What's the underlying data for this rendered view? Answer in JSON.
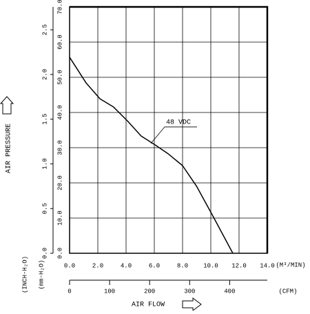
{
  "chart_data": {
    "type": "line",
    "x_label": "AIR FLOW",
    "y_label": "AIR PRESSURE",
    "x_unit": "(M³/MIN)",
    "y_unit": "(mm-H₂O)",
    "x2_unit": "(CFM)",
    "y2_unit": "(INCH-H₂O)",
    "xlim": [
      0,
      14
    ],
    "xticks": [
      {
        "value": 0,
        "label": "0.0"
      },
      {
        "value": 2,
        "label": "2.0"
      },
      {
        "value": 4,
        "label": "4.0"
      },
      {
        "value": 6,
        "label": "6.0"
      },
      {
        "value": 8,
        "label": "8.0"
      },
      {
        "value": 10,
        "label": "10.0"
      },
      {
        "value": 12,
        "label": "12.0"
      },
      {
        "value": 14,
        "label": "14.0"
      }
    ],
    "ylim": [
      0,
      70
    ],
    "yticks": [
      {
        "value": 0,
        "label": "0.0"
      },
      {
        "value": 10,
        "label": "10.0"
      },
      {
        "value": 20,
        "label": "20.0"
      },
      {
        "value": 30,
        "label": "30.0"
      },
      {
        "value": 40,
        "label": "40.0"
      },
      {
        "value": 50,
        "label": "50.0"
      },
      {
        "value": 60,
        "label": "60.0"
      },
      {
        "value": 70,
        "label": "70.0"
      }
    ],
    "x2lim": [
      0,
      494
    ],
    "x2ticks": [
      0,
      100,
      200,
      300,
      400
    ],
    "y2lim": [
      0,
      2.756
    ],
    "y2ticks": [
      {
        "value": 0,
        "label": "0.0"
      },
      0.5,
      {
        "value": 1,
        "label": "1.0"
      },
      1.5,
      {
        "value": 2,
        "label": "2.0"
      },
      2.5
    ],
    "grid": true,
    "x": [
      0,
      1.17,
      2.15,
      3.1,
      4.1,
      5.07,
      6.05,
      7.0,
      8.0,
      9.0,
      10.2,
      11.56
    ],
    "series": [
      {
        "name": "48 VDC",
        "color": "#000000",
        "values": [
          55.7,
          48.4,
          43.9,
          41.6,
          37.6,
          33.3,
          30.8,
          28.2,
          24.9,
          19.0,
          10.2,
          0
        ]
      }
    ]
  }
}
